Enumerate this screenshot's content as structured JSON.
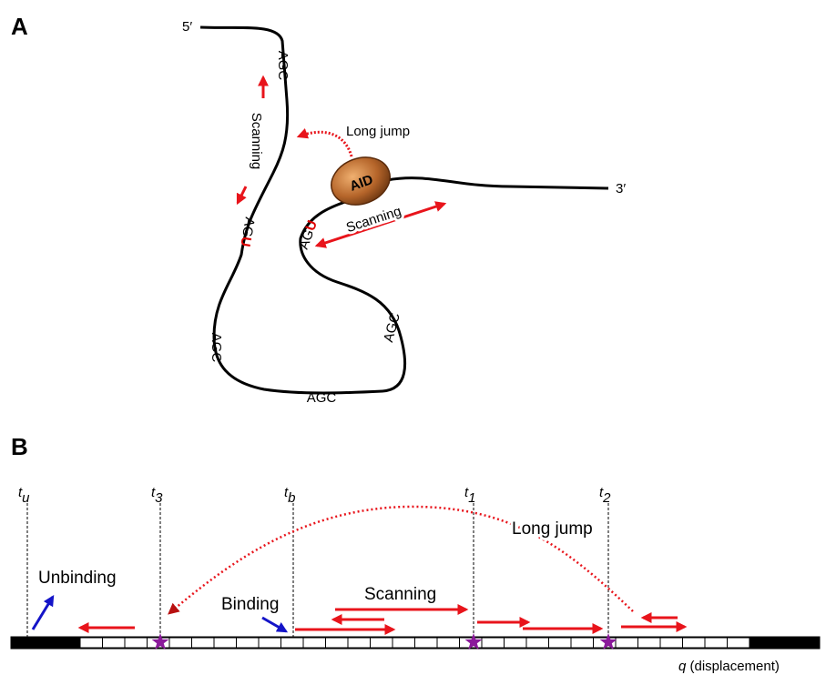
{
  "panel_a": {
    "label": "A",
    "five_prime": "5′",
    "three_prime": "3′",
    "enzyme": "AID",
    "long_jump": "Long jump",
    "scanning_left": "Scanning",
    "scanning_right": "Scanning",
    "motifs": [
      {
        "text": "AGC",
        "highlight": ""
      },
      {
        "text": "AG",
        "highlight": "U"
      },
      {
        "text": "AGC",
        "highlight": ""
      },
      {
        "text": "AGC",
        "highlight": ""
      },
      {
        "text": "AGC",
        "highlight": ""
      },
      {
        "text": "AG",
        "highlight": "U"
      }
    ]
  },
  "panel_b": {
    "label": "B",
    "times": [
      {
        "symbol": "t",
        "subscript": "u"
      },
      {
        "symbol": "t",
        "subscript": "3"
      },
      {
        "symbol": "t",
        "subscript": "b"
      },
      {
        "symbol": "t",
        "subscript": "1"
      },
      {
        "symbol": "t",
        "subscript": "2"
      }
    ],
    "long_jump": "Long jump",
    "unbinding": "Unbinding",
    "binding": "Binding",
    "scanning": "Scanning",
    "axis_symbol": "q",
    "axis_label": "(displacement)"
  }
}
